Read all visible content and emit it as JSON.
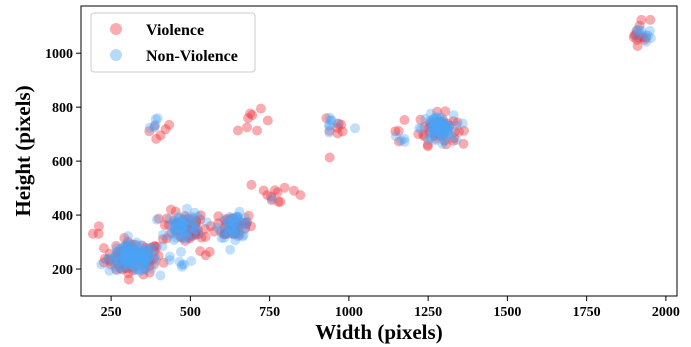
{
  "chart_data": {
    "type": "scatter",
    "xlabel": "Width (pixels)",
    "ylabel": "Height (pixels)",
    "xlim": [
      155,
      2035
    ],
    "ylim": [
      100,
      1175
    ],
    "xticks": [
      250,
      500,
      750,
      1000,
      1250,
      1500,
      1750,
      2000
    ],
    "yticks": [
      200,
      400,
      600,
      800,
      1000
    ],
    "grid": false,
    "legend_position": "top-left",
    "series": [
      {
        "name": "Violence",
        "color": "#ee2f3a",
        "clusters": [
          {
            "cx": 320,
            "cy": 240,
            "sx": 45,
            "sy": 30,
            "n": 90
          },
          {
            "cx": 480,
            "cy": 355,
            "sx": 35,
            "sy": 30,
            "n": 45
          },
          {
            "cx": 640,
            "cy": 360,
            "sx": 30,
            "sy": 25,
            "n": 40
          },
          {
            "cx": 1280,
            "cy": 720,
            "sx": 30,
            "sy": 28,
            "n": 55
          },
          {
            "cx": 1920,
            "cy": 1080,
            "sx": 15,
            "sy": 25,
            "n": 14
          },
          {
            "cx": 210,
            "cy": 345,
            "sx": 20,
            "sy": 15,
            "n": 4
          },
          {
            "cx": 400,
            "cy": 725,
            "sx": 20,
            "sy": 30,
            "n": 6
          },
          {
            "cx": 700,
            "cy": 725,
            "sx": 25,
            "sy": 30,
            "n": 8
          },
          {
            "cx": 960,
            "cy": 715,
            "sx": 20,
            "sy": 30,
            "n": 8
          },
          {
            "cx": 780,
            "cy": 480,
            "sx": 50,
            "sy": 25,
            "n": 12
          },
          {
            "cx": 560,
            "cy": 330,
            "sx": 30,
            "sy": 30,
            "n": 10
          },
          {
            "cx": 1160,
            "cy": 690,
            "sx": 15,
            "sy": 15,
            "n": 3
          }
        ]
      },
      {
        "name": "Non-Violence",
        "color": "#4aa3f5",
        "clusters": [
          {
            "cx": 320,
            "cy": 240,
            "sx": 38,
            "sy": 25,
            "n": 130
          },
          {
            "cx": 480,
            "cy": 355,
            "sx": 30,
            "sy": 28,
            "n": 55
          },
          {
            "cx": 640,
            "cy": 360,
            "sx": 25,
            "sy": 22,
            "n": 45
          },
          {
            "cx": 1280,
            "cy": 720,
            "sx": 25,
            "sy": 25,
            "n": 70
          },
          {
            "cx": 1930,
            "cy": 1070,
            "sx": 12,
            "sy": 15,
            "n": 10
          },
          {
            "cx": 390,
            "cy": 725,
            "sx": 20,
            "sy": 30,
            "n": 5
          },
          {
            "cx": 950,
            "cy": 735,
            "sx": 40,
            "sy": 30,
            "n": 8
          },
          {
            "cx": 1170,
            "cy": 680,
            "sx": 20,
            "sy": 15,
            "n": 4
          },
          {
            "cx": 460,
            "cy": 230,
            "sx": 25,
            "sy": 25,
            "n": 8
          },
          {
            "cx": 760,
            "cy": 450,
            "sx": 10,
            "sy": 10,
            "n": 1
          }
        ]
      }
    ]
  }
}
